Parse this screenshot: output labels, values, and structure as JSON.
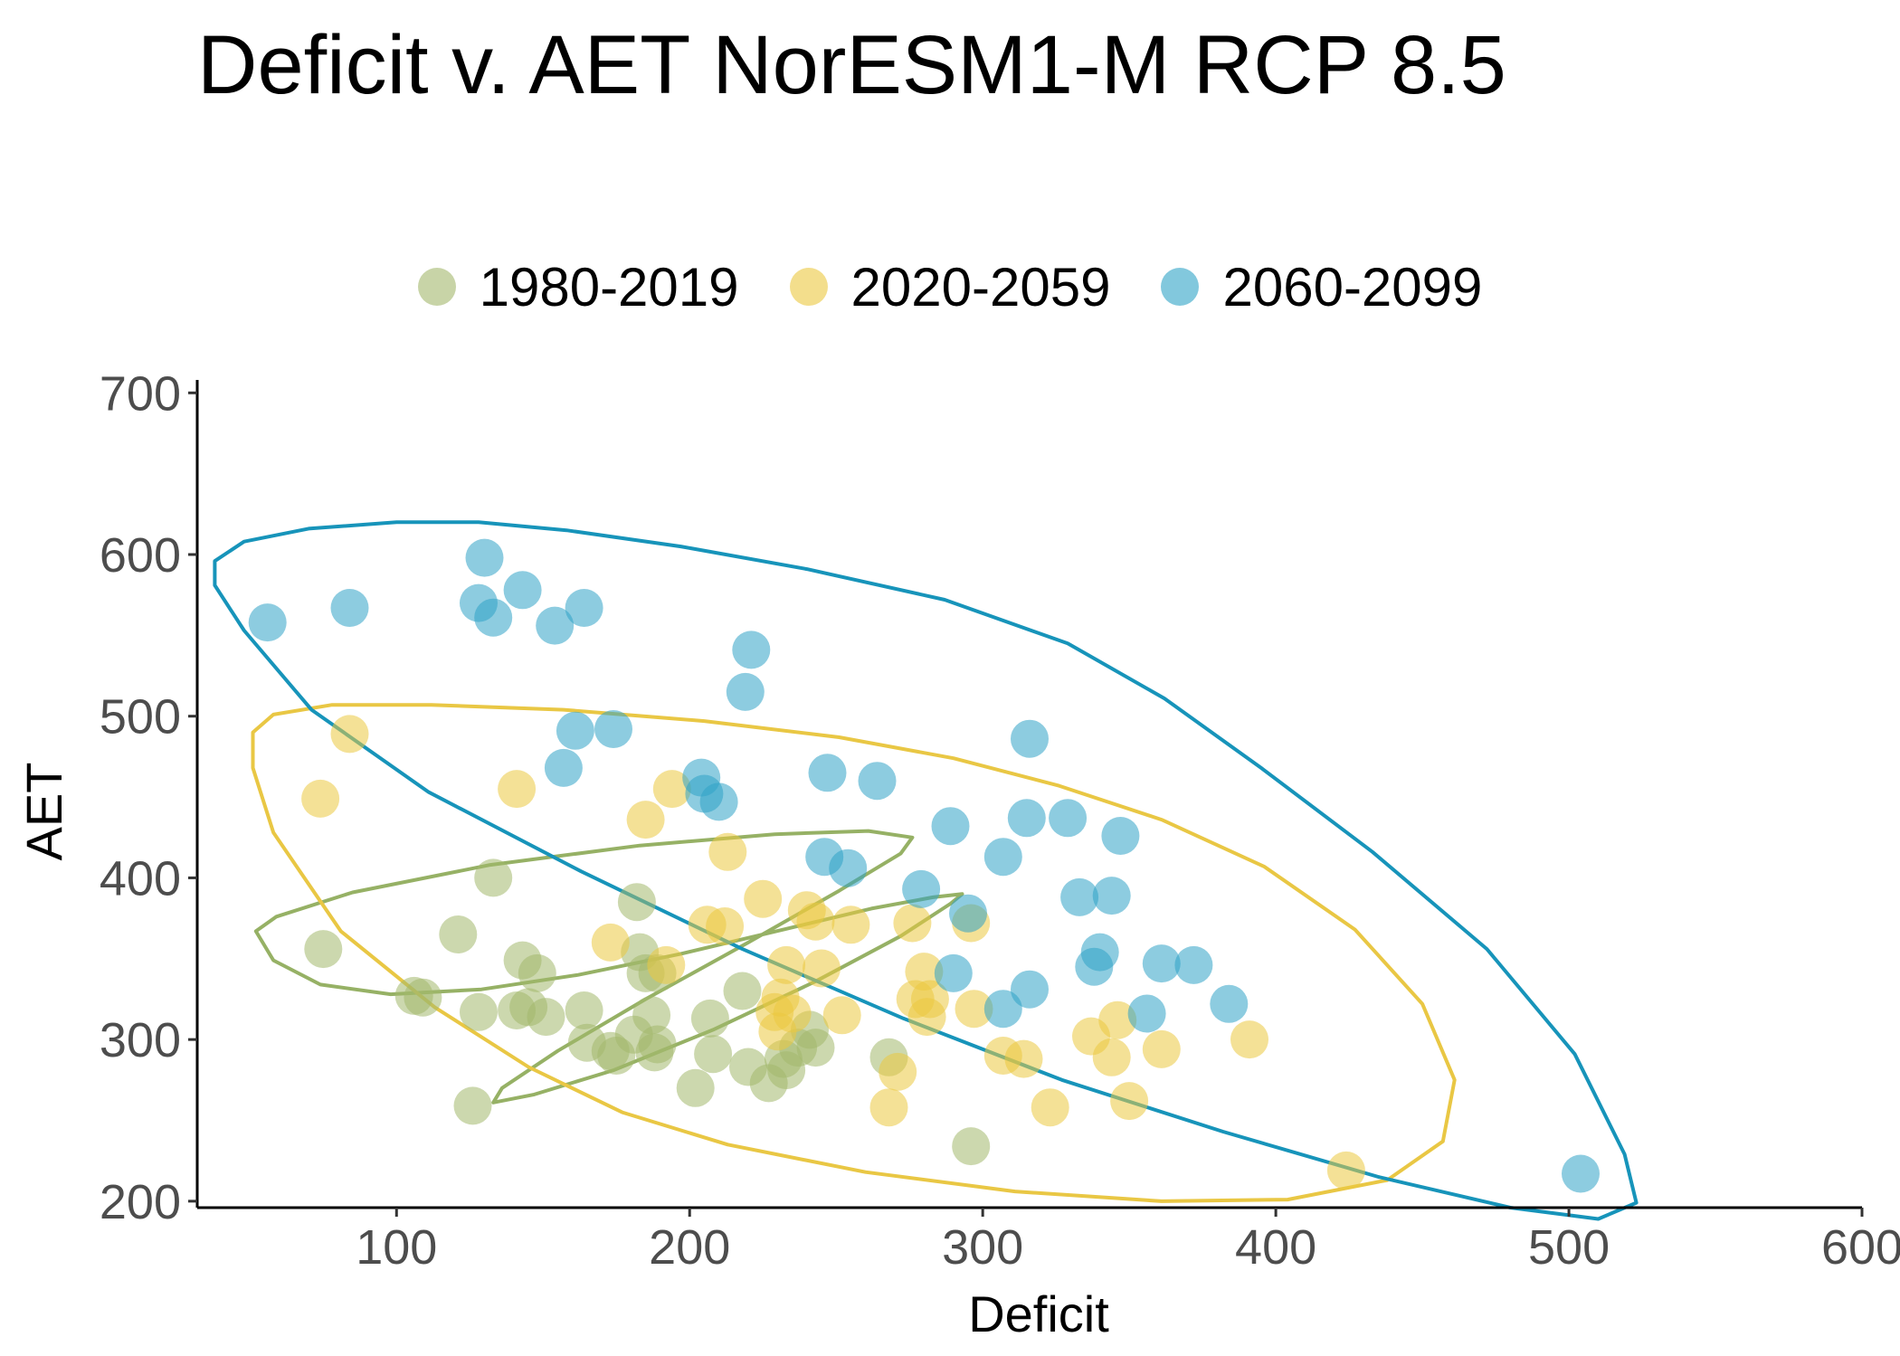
{
  "chart_data": {
    "type": "scatter",
    "title": "Deficit v. AET NorESM1-M RCP 8.5",
    "xlabel": "Deficit",
    "ylabel": "AET",
    "xlim": [
      32,
      600
    ],
    "ylim": [
      196,
      708
    ],
    "x_ticks": [
      100,
      200,
      300,
      400,
      500,
      600
    ],
    "y_ticks": [
      200,
      300,
      400,
      500,
      600,
      700
    ],
    "grid": false,
    "legend_position": "top",
    "series": [
      {
        "name": "1980-2019",
        "color": "#a3b86c",
        "points": [
          [
            75,
            356
          ],
          [
            106,
            327
          ],
          [
            109,
            326
          ],
          [
            121,
            365
          ],
          [
            126,
            259
          ],
          [
            128,
            317
          ],
          [
            133,
            400
          ],
          [
            141,
            318
          ],
          [
            143,
            349
          ],
          [
            145,
            320
          ],
          [
            148,
            341
          ],
          [
            151,
            314
          ],
          [
            164,
            318
          ],
          [
            165,
            298
          ],
          [
            173,
            293
          ],
          [
            175,
            290
          ],
          [
            181,
            303
          ],
          [
            182,
            385
          ],
          [
            183,
            354
          ],
          [
            185,
            341
          ],
          [
            187,
            315
          ],
          [
            188,
            292
          ],
          [
            189,
            341
          ],
          [
            189,
            297
          ],
          [
            202,
            270
          ],
          [
            207,
            313
          ],
          [
            208,
            291
          ],
          [
            218,
            330
          ],
          [
            220,
            283
          ],
          [
            227,
            273
          ],
          [
            232,
            288
          ],
          [
            233,
            281
          ],
          [
            237,
            295
          ],
          [
            241,
            306
          ],
          [
            243,
            295
          ],
          [
            268,
            289
          ],
          [
            296,
            234
          ]
        ]
      },
      {
        "name": "2020-2059",
        "color": "#ebc83f",
        "points": [
          [
            74,
            449
          ],
          [
            84,
            489
          ],
          [
            141,
            455
          ],
          [
            173,
            360
          ],
          [
            185,
            436
          ],
          [
            192,
            346
          ],
          [
            194,
            455
          ],
          [
            206,
            371
          ],
          [
            212,
            370
          ],
          [
            213,
            416
          ],
          [
            225,
            387
          ],
          [
            229,
            317
          ],
          [
            230,
            305
          ],
          [
            231,
            326
          ],
          [
            233,
            346
          ],
          [
            235,
            316
          ],
          [
            240,
            380
          ],
          [
            243,
            373
          ],
          [
            245,
            344
          ],
          [
            252,
            315
          ],
          [
            255,
            371
          ],
          [
            268,
            258
          ],
          [
            271,
            280
          ],
          [
            276,
            372
          ],
          [
            277,
            325
          ],
          [
            280,
            342
          ],
          [
            281,
            314
          ],
          [
            282,
            325
          ],
          [
            296,
            372
          ],
          [
            297,
            319
          ],
          [
            307,
            290
          ],
          [
            314,
            288
          ],
          [
            323,
            258
          ],
          [
            337,
            302
          ],
          [
            344,
            289
          ],
          [
            346,
            312
          ],
          [
            350,
            262
          ],
          [
            361,
            294
          ],
          [
            391,
            300
          ],
          [
            424,
            219
          ]
        ]
      },
      {
        "name": "2060-2099",
        "color": "#2fa3c6",
        "points": [
          [
            56,
            558
          ],
          [
            84,
            567
          ],
          [
            128,
            570
          ],
          [
            130,
            598
          ],
          [
            133,
            561
          ],
          [
            143,
            578
          ],
          [
            154,
            556
          ],
          [
            157,
            468
          ],
          [
            161,
            491
          ],
          [
            164,
            567
          ],
          [
            174,
            492
          ],
          [
            204,
            462
          ],
          [
            205,
            452
          ],
          [
            210,
            447
          ],
          [
            219,
            515
          ],
          [
            221,
            541
          ],
          [
            246,
            413
          ],
          [
            247,
            465
          ],
          [
            254,
            406
          ],
          [
            264,
            460
          ],
          [
            279,
            393
          ],
          [
            289,
            432
          ],
          [
            290,
            341
          ],
          [
            295,
            378
          ],
          [
            307,
            319
          ],
          [
            307,
            413
          ],
          [
            315,
            437
          ],
          [
            316,
            331
          ],
          [
            316,
            486
          ],
          [
            329,
            437
          ],
          [
            333,
            388
          ],
          [
            338,
            345
          ],
          [
            340,
            354
          ],
          [
            344,
            389
          ],
          [
            347,
            426
          ],
          [
            356,
            316
          ],
          [
            361,
            347
          ],
          [
            372,
            346
          ],
          [
            384,
            322
          ],
          [
            504,
            217
          ]
        ]
      }
    ],
    "ellipses": [
      {
        "series": "1980-2019",
        "color": "#96b165",
        "path": [
          [
            52,
            367
          ],
          [
            58,
            349
          ],
          [
            74,
            334
          ],
          [
            98,
            328
          ],
          [
            129,
            331
          ],
          [
            162,
            340
          ],
          [
            197,
            353
          ],
          [
            232,
            368
          ],
          [
            262,
            381
          ],
          [
            283,
            388
          ],
          [
            293,
            390
          ],
          [
            289,
            384
          ],
          [
            272,
            364
          ],
          [
            243,
            336
          ],
          [
            208,
            306
          ],
          [
            174,
            281
          ],
          [
            147,
            266
          ],
          [
            133,
            261
          ],
          [
            136,
            270
          ],
          [
            155,
            293
          ],
          [
            185,
            325
          ],
          [
            220,
            360
          ],
          [
            251,
            392
          ],
          [
            272,
            415
          ],
          [
            276,
            425
          ],
          [
            261,
            429
          ],
          [
            229,
            427
          ],
          [
            183,
            420
          ],
          [
            132,
            408
          ],
          [
            85,
            391
          ],
          [
            59,
            376
          ],
          [
            52,
            367
          ]
        ]
      },
      {
        "series": "2020-2059",
        "color": "#e9c744",
        "path": [
          [
            51,
            490
          ],
          [
            58,
            501
          ],
          [
            78,
            507
          ],
          [
            112,
            507
          ],
          [
            157,
            504
          ],
          [
            205,
            497
          ],
          [
            251,
            487
          ],
          [
            290,
            474
          ],
          [
            326,
            457
          ],
          [
            361,
            436
          ],
          [
            396,
            407
          ],
          [
            427,
            368
          ],
          [
            450,
            322
          ],
          [
            461,
            275
          ],
          [
            457,
            237
          ],
          [
            438,
            213
          ],
          [
            404,
            201
          ],
          [
            361,
            200
          ],
          [
            311,
            206
          ],
          [
            260,
            218
          ],
          [
            213,
            235
          ],
          [
            177,
            255
          ],
          [
            145,
            283
          ],
          [
            113,
            320
          ],
          [
            81,
            367
          ],
          [
            58,
            428
          ],
          [
            51,
            468
          ],
          [
            51,
            490
          ]
        ]
      },
      {
        "series": "2060-2099",
        "color": "#1794ba",
        "path": [
          [
            38,
            596
          ],
          [
            48,
            608
          ],
          [
            70,
            616
          ],
          [
            100,
            620
          ],
          [
            128,
            620
          ],
          [
            158,
            615
          ],
          [
            197,
            605
          ],
          [
            240,
            591
          ],
          [
            287,
            572
          ],
          [
            329,
            545
          ],
          [
            362,
            511
          ],
          [
            395,
            468
          ],
          [
            433,
            416
          ],
          [
            472,
            356
          ],
          [
            502,
            291
          ],
          [
            519,
            229
          ],
          [
            523,
            199
          ],
          [
            510,
            189
          ],
          [
            480,
            196
          ],
          [
            435,
            215
          ],
          [
            382,
            243
          ],
          [
            327,
            275
          ],
          [
            273,
            313
          ],
          [
            218,
            356
          ],
          [
            163,
            404
          ],
          [
            111,
            453
          ],
          [
            71,
            504
          ],
          [
            48,
            553
          ],
          [
            38,
            581
          ],
          [
            38,
            596
          ]
        ]
      }
    ]
  }
}
